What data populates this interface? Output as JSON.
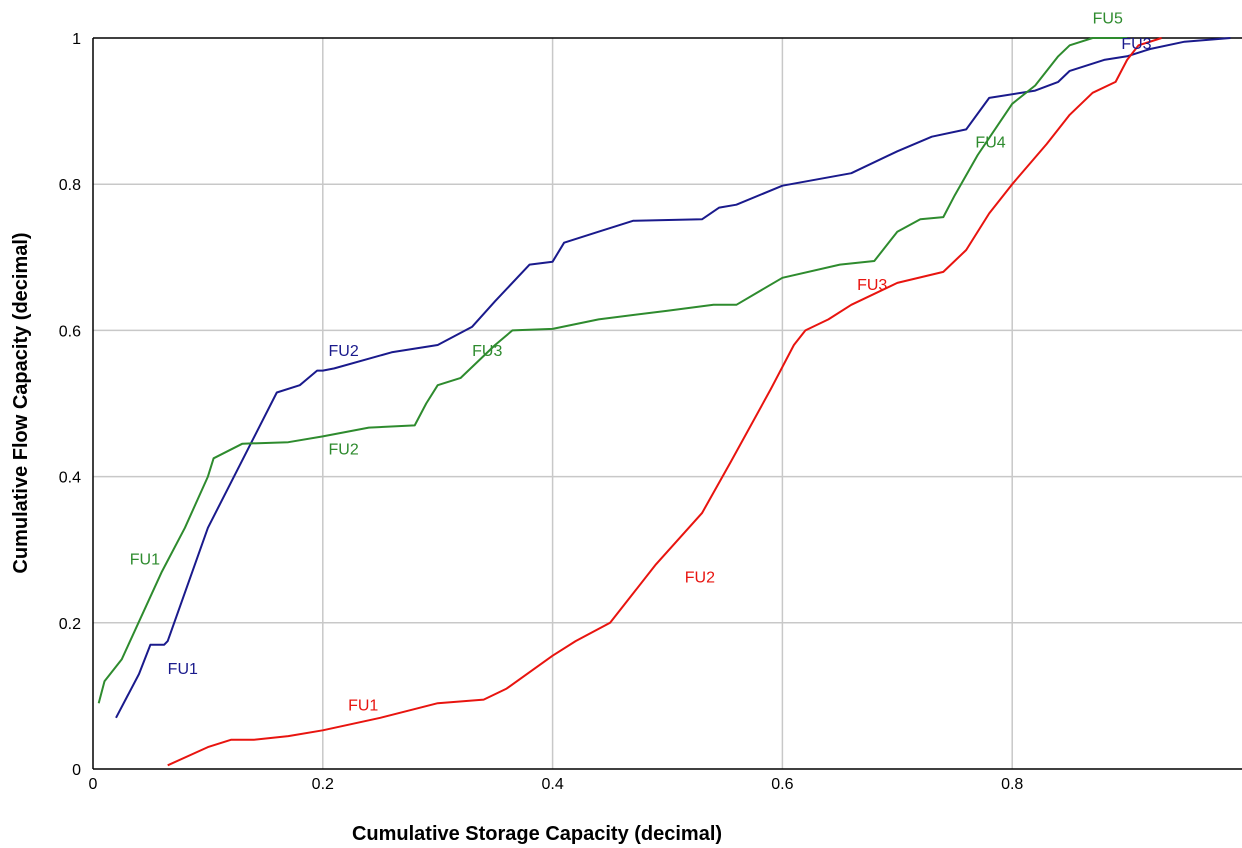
{
  "chart_data": {
    "type": "line",
    "title": "",
    "xlabel": "Cumulative Storage Capacity (decimal)",
    "ylabel": "Cumulative Flow Capacity (decimal)",
    "xlim": [
      0,
      1
    ],
    "ylim": [
      0,
      1
    ],
    "grid": true,
    "legend": "none",
    "x_ticks": [
      "0",
      "0.2",
      "0.4",
      "0.6",
      "0.8"
    ],
    "y_ticks": [
      "0",
      "0.2",
      "0.4",
      "0.6",
      "0.8",
      "1"
    ],
    "series": [
      {
        "color": "#1a1a8c",
        "points": [
          [
            0.02,
            0.07
          ],
          [
            0.03,
            0.1
          ],
          [
            0.04,
            0.13
          ],
          [
            0.05,
            0.17
          ],
          [
            0.062,
            0.17
          ],
          [
            0.065,
            0.175
          ],
          [
            0.1,
            0.33
          ],
          [
            0.16,
            0.515
          ],
          [
            0.18,
            0.525
          ],
          [
            0.195,
            0.545
          ],
          [
            0.2,
            0.545
          ],
          [
            0.21,
            0.548
          ],
          [
            0.26,
            0.57
          ],
          [
            0.3,
            0.58
          ],
          [
            0.33,
            0.605
          ],
          [
            0.35,
            0.64
          ],
          [
            0.38,
            0.69
          ],
          [
            0.4,
            0.694
          ],
          [
            0.41,
            0.72
          ],
          [
            0.44,
            0.735
          ],
          [
            0.47,
            0.75
          ],
          [
            0.53,
            0.752
          ],
          [
            0.545,
            0.768
          ],
          [
            0.56,
            0.772
          ],
          [
            0.6,
            0.798
          ],
          [
            0.66,
            0.815
          ],
          [
            0.7,
            0.845
          ],
          [
            0.73,
            0.865
          ],
          [
            0.76,
            0.875
          ],
          [
            0.78,
            0.918
          ],
          [
            0.82,
            0.928
          ],
          [
            0.84,
            0.94
          ],
          [
            0.85,
            0.955
          ],
          [
            0.88,
            0.97
          ],
          [
            0.9,
            0.975
          ],
          [
            0.92,
            0.985
          ],
          [
            0.95,
            0.995
          ],
          [
            0.99,
            1.0
          ]
        ]
      },
      {
        "color": "#2e8b2e",
        "points": [
          [
            0.005,
            0.09
          ],
          [
            0.01,
            0.12
          ],
          [
            0.025,
            0.15
          ],
          [
            0.06,
            0.27
          ],
          [
            0.08,
            0.33
          ],
          [
            0.1,
            0.4
          ],
          [
            0.105,
            0.425
          ],
          [
            0.13,
            0.445
          ],
          [
            0.17,
            0.447
          ],
          [
            0.2,
            0.455
          ],
          [
            0.24,
            0.467
          ],
          [
            0.28,
            0.47
          ],
          [
            0.29,
            0.5
          ],
          [
            0.3,
            0.525
          ],
          [
            0.32,
            0.535
          ],
          [
            0.35,
            0.58
          ],
          [
            0.365,
            0.6
          ],
          [
            0.4,
            0.602
          ],
          [
            0.44,
            0.615
          ],
          [
            0.5,
            0.627
          ],
          [
            0.54,
            0.635
          ],
          [
            0.56,
            0.635
          ],
          [
            0.6,
            0.672
          ],
          [
            0.65,
            0.69
          ],
          [
            0.68,
            0.695
          ],
          [
            0.7,
            0.735
          ],
          [
            0.72,
            0.752
          ],
          [
            0.74,
            0.755
          ],
          [
            0.75,
            0.785
          ],
          [
            0.77,
            0.84
          ],
          [
            0.8,
            0.91
          ],
          [
            0.82,
            0.935
          ],
          [
            0.84,
            0.975
          ],
          [
            0.85,
            0.99
          ],
          [
            0.86,
            0.995
          ],
          [
            0.87,
            1.0
          ],
          [
            0.9,
            1.0
          ]
        ]
      },
      {
        "color": "#e8140f",
        "points": [
          [
            0.065,
            0.005
          ],
          [
            0.1,
            0.03
          ],
          [
            0.12,
            0.04
          ],
          [
            0.14,
            0.04
          ],
          [
            0.17,
            0.045
          ],
          [
            0.2,
            0.053
          ],
          [
            0.25,
            0.07
          ],
          [
            0.3,
            0.09
          ],
          [
            0.34,
            0.095
          ],
          [
            0.36,
            0.11
          ],
          [
            0.4,
            0.155
          ],
          [
            0.42,
            0.175
          ],
          [
            0.45,
            0.2
          ],
          [
            0.49,
            0.28
          ],
          [
            0.53,
            0.35
          ],
          [
            0.555,
            0.42
          ],
          [
            0.59,
            0.52
          ],
          [
            0.61,
            0.58
          ],
          [
            0.62,
            0.6
          ],
          [
            0.64,
            0.615
          ],
          [
            0.66,
            0.635
          ],
          [
            0.7,
            0.665
          ],
          [
            0.74,
            0.68
          ],
          [
            0.76,
            0.71
          ],
          [
            0.78,
            0.76
          ],
          [
            0.8,
            0.8
          ],
          [
            0.83,
            0.855
          ],
          [
            0.85,
            0.895
          ],
          [
            0.87,
            0.925
          ],
          [
            0.89,
            0.94
          ],
          [
            0.9,
            0.97
          ],
          [
            0.91,
            0.99
          ],
          [
            0.93,
            1.0
          ]
        ]
      }
    ],
    "annotations": [
      {
        "text": "FU1",
        "color": "#1a1a8c",
        "x": 0.065,
        "y": 0.13
      },
      {
        "text": "FU2",
        "color": "#1a1a8c",
        "x": 0.205,
        "y": 0.565
      },
      {
        "text": "FU3",
        "color": "#1a1a8c",
        "x": 0.895,
        "y": 0.985
      },
      {
        "text": "FU1",
        "color": "#2e8b2e",
        "x": 0.032,
        "y": 0.28
      },
      {
        "text": "FU2",
        "color": "#2e8b2e",
        "x": 0.205,
        "y": 0.43
      },
      {
        "text": "FU3",
        "color": "#2e8b2e",
        "x": 0.33,
        "y": 0.565
      },
      {
        "text": "FU4",
        "color": "#2e8b2e",
        "x": 0.768,
        "y": 0.85
      },
      {
        "text": "FU5",
        "color": "#2e8b2e",
        "x": 0.87,
        "y": 1.02
      },
      {
        "text": "FU1",
        "color": "#e8140f",
        "x": 0.222,
        "y": 0.08
      },
      {
        "text": "FU2",
        "color": "#e8140f",
        "x": 0.515,
        "y": 0.255
      },
      {
        "text": "FU3",
        "color": "#e8140f",
        "x": 0.665,
        "y": 0.655
      }
    ]
  }
}
